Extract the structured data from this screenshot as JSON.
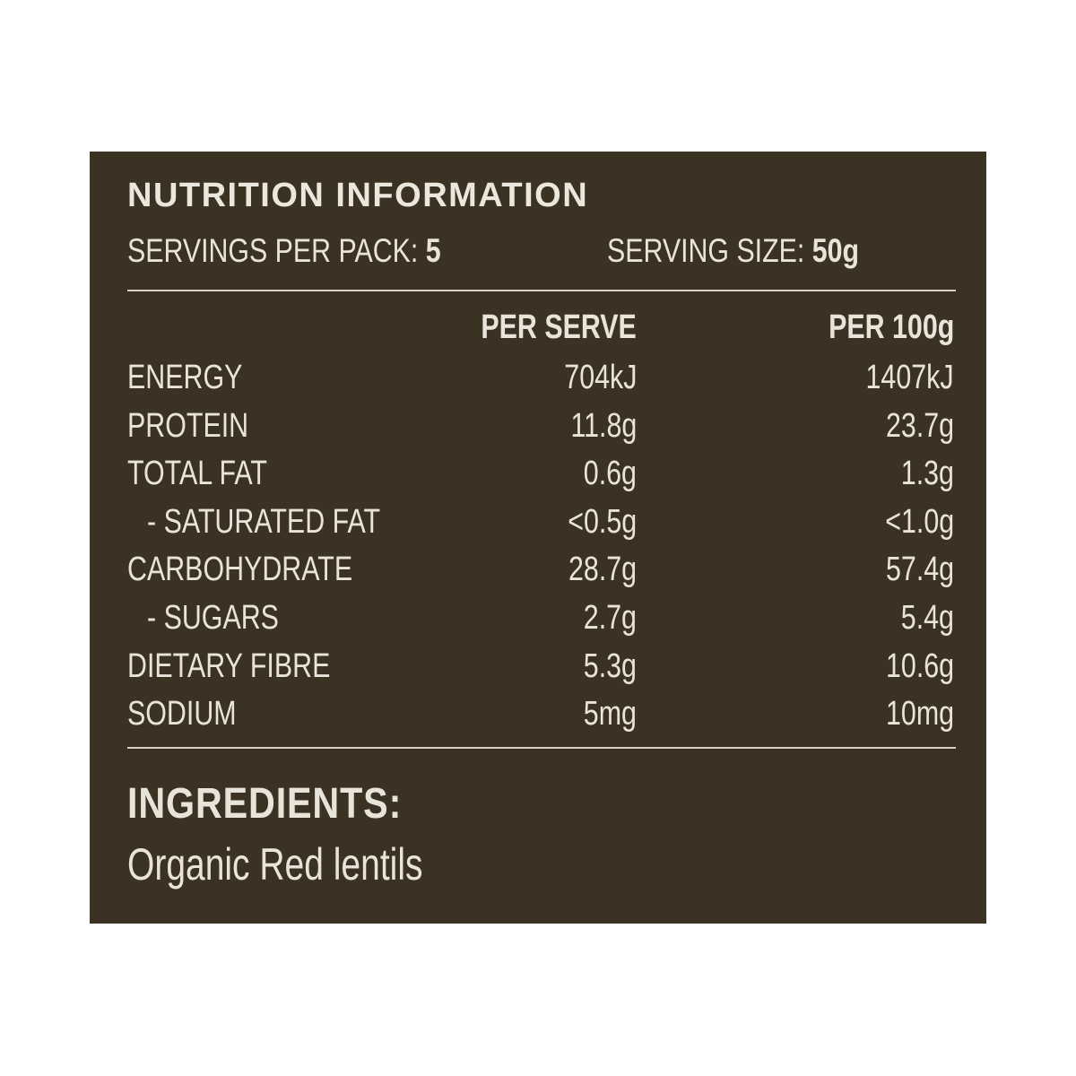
{
  "panel": {
    "background": "#3b3223",
    "text_color": "#e9e4da"
  },
  "title": "NUTRITION INFORMATION",
  "servings": {
    "per_pack_label": "SERVINGS PER PACK:",
    "per_pack_value": "5",
    "size_label": "SERVING SIZE:",
    "size_value": "50g"
  },
  "table": {
    "headers": [
      "PER SERVE",
      "PER 100g"
    ],
    "rows": [
      {
        "name": "ENERGY",
        "per_serve": "704kJ",
        "per_100g": "1407kJ"
      },
      {
        "name": "PROTEIN",
        "per_serve": "11.8g",
        "per_100g": "23.7g"
      },
      {
        "name": "TOTAL FAT",
        "per_serve": "0.6g",
        "per_100g": "1.3g"
      },
      {
        "name": "- SATURATED FAT",
        "per_serve": "<0.5g",
        "per_100g": "<1.0g"
      },
      {
        "name": "CARBOHYDRATE",
        "per_serve": "28.7g",
        "per_100g": "57.4g"
      },
      {
        "name": "- SUGARS",
        "per_serve": "2.7g",
        "per_100g": "5.4g"
      },
      {
        "name": "DIETARY FIBRE",
        "per_serve": "5.3g",
        "per_100g": "10.6g"
      },
      {
        "name": "SODIUM",
        "per_serve": "5mg",
        "per_100g": "10mg"
      }
    ]
  },
  "ingredients": {
    "heading": "INGREDIENTS:",
    "text": "Organic Red lentils"
  }
}
